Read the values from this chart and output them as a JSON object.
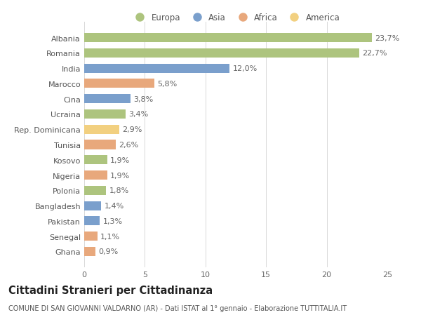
{
  "countries": [
    "Albania",
    "Romania",
    "India",
    "Marocco",
    "Cina",
    "Ucraina",
    "Rep. Dominicana",
    "Tunisia",
    "Kosovo",
    "Nigeria",
    "Polonia",
    "Bangladesh",
    "Pakistan",
    "Senegal",
    "Ghana"
  ],
  "values": [
    23.7,
    22.7,
    12.0,
    5.8,
    3.8,
    3.4,
    2.9,
    2.6,
    1.9,
    1.9,
    1.8,
    1.4,
    1.3,
    1.1,
    0.9
  ],
  "continents": [
    "Europa",
    "Europa",
    "Asia",
    "Africa",
    "Asia",
    "Europa",
    "America",
    "Africa",
    "Europa",
    "Africa",
    "Europa",
    "Asia",
    "Asia",
    "Africa",
    "Africa"
  ],
  "colors": {
    "Europa": "#adc47e",
    "Asia": "#7a9fcc",
    "Africa": "#e8a87c",
    "America": "#f2d080"
  },
  "legend_order": [
    "Europa",
    "Asia",
    "Africa",
    "America"
  ],
  "title": "Cittadini Stranieri per Cittadinanza",
  "subtitle": "COMUNE DI SAN GIOVANNI VALDARNO (AR) - Dati ISTAT al 1° gennaio - Elaborazione TUTTITALIA.IT",
  "xlim": [
    0,
    25
  ],
  "xticks": [
    0,
    5,
    10,
    15,
    20,
    25
  ],
  "bg_color": "#ffffff",
  "grid_color": "#d8d8d8",
  "bar_height": 0.6,
  "label_fontsize": 8,
  "tick_fontsize": 8,
  "title_fontsize": 10.5,
  "subtitle_fontsize": 7,
  "legend_fontsize": 8.5
}
